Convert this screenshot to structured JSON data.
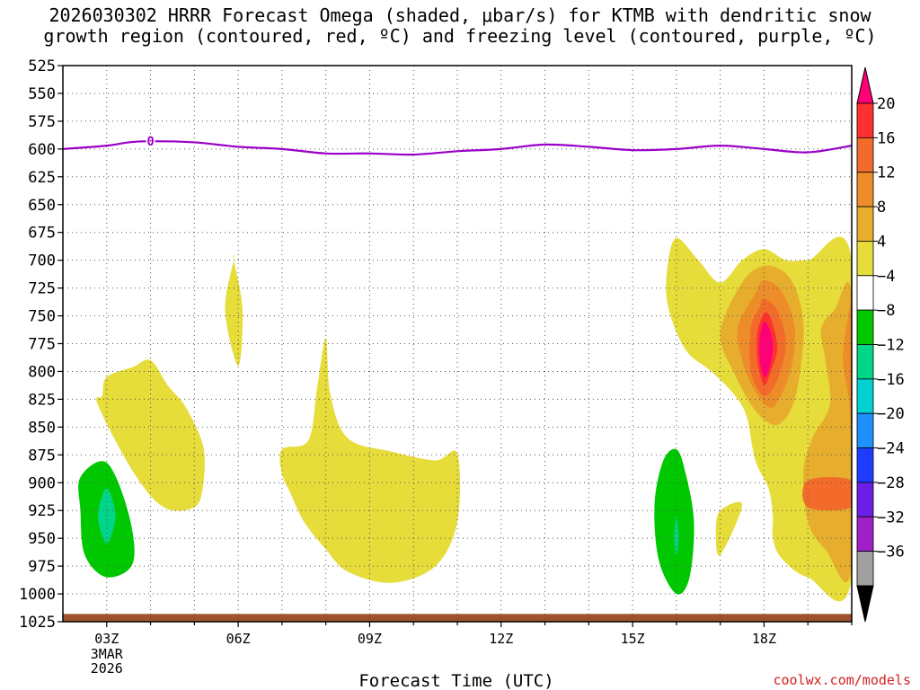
{
  "title": {
    "line1": "2026030302 HRRR Forecast Omega (shaded, μbar/s) for KTMB with dendritic snow",
    "line2": "growth region (contoured, red, ºC) and freezing level (contoured, purple, ºC)"
  },
  "credit": "coolwx.com/models",
  "chart_data": {
    "type": "contour",
    "title": "2026030302 HRRR Forecast Omega (shaded, μbar/s) for KTMB with dendritic snow growth region (contoured, red, ºC) and freezing level (contoured, purple, ºC)",
    "xlabel": "Forecast Time (UTC)",
    "ylabel": "",
    "x_units": "forecast hours from 2026-03-03 00Z",
    "xlim": [
      2,
      20
    ],
    "y_units": "hPa",
    "ylim": [
      1025,
      525
    ],
    "y_ticks": [
      "525",
      "550",
      "575",
      "600",
      "625",
      "650",
      "675",
      "700",
      "725",
      "750",
      "775",
      "800",
      "825",
      "850",
      "875",
      "900",
      "925",
      "950",
      "975",
      "1000",
      "1025"
    ],
    "x_ticks": [
      {
        "label": "03Z",
        "hour": 3
      },
      {
        "label": "06Z",
        "hour": 6
      },
      {
        "label": "09Z",
        "hour": 9
      },
      {
        "label": "12Z",
        "hour": 12
      },
      {
        "label": "15Z",
        "hour": 15
      },
      {
        "label": "18Z",
        "hour": 18
      }
    ],
    "date_label": [
      "3MAR",
      "2026"
    ],
    "colorbar": {
      "units": "μbar/s",
      "labels": [
        "20",
        "16",
        "12",
        "8",
        "4",
        "−4",
        "−8",
        "−12",
        "−16",
        "−20",
        "−24",
        "−28",
        "−32",
        "−36"
      ],
      "colors": [
        "#ff0077",
        "#ff3030",
        "#f26b2a",
        "#ec8d2a",
        "#e7ae2e",
        "#e6dc3a",
        "#ffffff",
        "#00c800",
        "#00d58a",
        "#00d0d0",
        "#1e90ff",
        "#1e3cff",
        "#6a1ee6",
        "#a020c8",
        "#a0a0a0",
        "#000000"
      ]
    },
    "freezing_level": {
      "label": "0",
      "label_hour": 4,
      "points": [
        [
          2,
          600
        ],
        [
          3,
          597
        ],
        [
          3.5,
          594
        ],
        [
          4,
          593
        ],
        [
          5,
          594
        ],
        [
          6,
          598
        ],
        [
          7,
          600
        ],
        [
          8,
          604
        ],
        [
          9,
          604
        ],
        [
          10,
          605
        ],
        [
          11,
          602
        ],
        [
          12,
          600
        ],
        [
          13,
          596
        ],
        [
          14,
          598
        ],
        [
          15,
          601
        ],
        [
          16,
          600
        ],
        [
          17,
          597
        ],
        [
          18,
          600
        ],
        [
          19,
          603
        ],
        [
          20,
          597
        ]
      ]
    },
    "omega_regions": [
      {
        "value": 4,
        "color": "#e6dc3a",
        "points": [
          [
            3,
            805
          ],
          [
            3.6,
            796
          ],
          [
            4,
            790
          ],
          [
            4.4,
            813
          ],
          [
            4.8,
            832
          ],
          [
            5.2,
            867
          ],
          [
            5.2,
            902
          ],
          [
            5.0,
            922
          ],
          [
            4.3,
            922
          ],
          [
            3.6,
            890
          ],
          [
            2.8,
            830
          ],
          [
            2.9,
            822
          ]
        ]
      },
      {
        "value": 4,
        "color": "#e6dc3a",
        "points": [
          [
            5.9,
            700
          ],
          [
            6.1,
            745
          ],
          [
            6.0,
            795
          ],
          [
            5.7,
            745
          ],
          [
            5.9,
            700
          ]
        ]
      },
      {
        "value": 4,
        "color": "#e6dc3a",
        "points": [
          [
            8.0,
            770
          ],
          [
            8.1,
            820
          ],
          [
            8.5,
            860
          ],
          [
            9.5,
            872
          ],
          [
            10.5,
            880
          ],
          [
            11.0,
            874
          ],
          [
            11.0,
            935
          ],
          [
            10.5,
            975
          ],
          [
            9.5,
            990
          ],
          [
            8.5,
            980
          ],
          [
            8.0,
            960
          ],
          [
            7.5,
            935
          ],
          [
            7.2,
            910
          ],
          [
            7.0,
            892
          ],
          [
            7.0,
            870
          ],
          [
            7.6,
            862
          ],
          [
            7.8,
            815
          ]
        ]
      },
      {
        "value": -4,
        "color": "#00c800",
        "points": [
          [
            2.4,
            895
          ],
          [
            3.0,
            882
          ],
          [
            3.5,
            928
          ],
          [
            3.6,
            972
          ],
          [
            3.0,
            985
          ],
          [
            2.5,
            965
          ],
          [
            2.4,
            925
          ]
        ]
      },
      {
        "value": -8,
        "color": "#00d58a",
        "points": [
          [
            3.0,
            905
          ],
          [
            3.2,
            930
          ],
          [
            3.0,
            955
          ],
          [
            2.8,
            930
          ]
        ]
      },
      {
        "value": -4,
        "color": "#00c800",
        "points": [
          [
            16.0,
            870
          ],
          [
            16.2,
            890
          ],
          [
            16.4,
            935
          ],
          [
            16.3,
            985
          ],
          [
            16.0,
            1000
          ],
          [
            15.6,
            970
          ],
          [
            15.5,
            920
          ],
          [
            15.7,
            880
          ]
        ]
      },
      {
        "value": -8,
        "color": "#00d58a",
        "points": [
          [
            16.0,
            930
          ],
          [
            16.05,
            950
          ],
          [
            16.0,
            965
          ],
          [
            15.95,
            950
          ]
        ]
      },
      {
        "value": 4,
        "color": "#e6dc3a",
        "points": [
          [
            17.0,
            925
          ],
          [
            17.5,
            920
          ],
          [
            17.0,
            965
          ],
          [
            16.9,
            945
          ]
        ]
      },
      {
        "value": 4,
        "color": "#e6dc3a",
        "points": [
          [
            16.0,
            680
          ],
          [
            16.5,
            700
          ],
          [
            17.0,
            720
          ],
          [
            17.5,
            700
          ],
          [
            18.0,
            690
          ],
          [
            18.5,
            700
          ],
          [
            19.0,
            700
          ],
          [
            20,
            700
          ],
          [
            20,
            985
          ],
          [
            19.0,
            985
          ],
          [
            18.4,
            968
          ],
          [
            18.2,
            950
          ],
          [
            18.2,
            930
          ],
          [
            18.1,
            905
          ],
          [
            17.8,
            880
          ],
          [
            17.6,
            840
          ],
          [
            17.3,
            820
          ],
          [
            16.8,
            800
          ],
          [
            16.2,
            780
          ],
          [
            15.8,
            740
          ],
          [
            15.8,
            705
          ]
        ]
      },
      {
        "value": 8,
        "color": "#e7ae2e",
        "points": [
          [
            17.0,
            765
          ],
          [
            17.5,
            720
          ],
          [
            18.0,
            705
          ],
          [
            18.5,
            712
          ],
          [
            18.8,
            735
          ],
          [
            18.9,
            770
          ],
          [
            18.7,
            825
          ],
          [
            18.3,
            848
          ],
          [
            17.8,
            835
          ],
          [
            17.3,
            800
          ]
        ]
      },
      {
        "value": 8,
        "color": "#e7ae2e",
        "points": [
          [
            19.6,
            745
          ],
          [
            20,
            735
          ],
          [
            20,
            975
          ],
          [
            19.4,
            960
          ],
          [
            19.0,
            935
          ],
          [
            18.9,
            890
          ],
          [
            19.1,
            860
          ],
          [
            19.5,
            830
          ],
          [
            19.4,
            790
          ],
          [
            19.3,
            762
          ]
        ]
      },
      {
        "value": 12,
        "color": "#ec8d2a",
        "points": [
          [
            17.4,
            760
          ],
          [
            17.8,
            730
          ],
          [
            18.0,
            718
          ],
          [
            18.4,
            728
          ],
          [
            18.7,
            760
          ],
          [
            18.6,
            800
          ],
          [
            18.2,
            832
          ],
          [
            17.8,
            818
          ],
          [
            17.5,
            790
          ]
        ]
      },
      {
        "value": 12,
        "color": "#ec8d2a",
        "points": [
          [
            19.9,
            755
          ],
          [
            20,
            750
          ],
          [
            20,
            880
          ],
          [
            19.95,
            830
          ],
          [
            19.8,
            790
          ]
        ]
      },
      {
        "value": 16,
        "color": "#f26b2a",
        "points": [
          [
            19.0,
            898
          ],
          [
            20,
            898
          ],
          [
            20,
            922
          ],
          [
            19.0,
            922
          ]
        ]
      },
      {
        "value": 16,
        "color": "#f26b2a",
        "points": [
          [
            17.7,
            760
          ],
          [
            17.9,
            742
          ],
          [
            18.0,
            735
          ],
          [
            18.3,
            745
          ],
          [
            18.5,
            775
          ],
          [
            18.3,
            808
          ],
          [
            18.0,
            822
          ],
          [
            17.7,
            800
          ]
        ]
      },
      {
        "value": 20,
        "color": "#ff3030",
        "points": [
          [
            17.85,
            765
          ],
          [
            18.0,
            748
          ],
          [
            18.15,
            752
          ],
          [
            18.3,
            778
          ],
          [
            18.15,
            800
          ],
          [
            18.0,
            812
          ],
          [
            17.85,
            790
          ]
        ]
      },
      {
        "value": 24,
        "color": "#ff0077",
        "points": [
          [
            17.9,
            770
          ],
          [
            18.0,
            755
          ],
          [
            18.15,
            765
          ],
          [
            18.2,
            780
          ],
          [
            18.1,
            800
          ],
          [
            18.0,
            805
          ],
          [
            17.9,
            790
          ]
        ]
      }
    ],
    "ground": {
      "color": "#a0522d",
      "top_hpa": 1018,
      "bottom_hpa": 1025
    }
  }
}
